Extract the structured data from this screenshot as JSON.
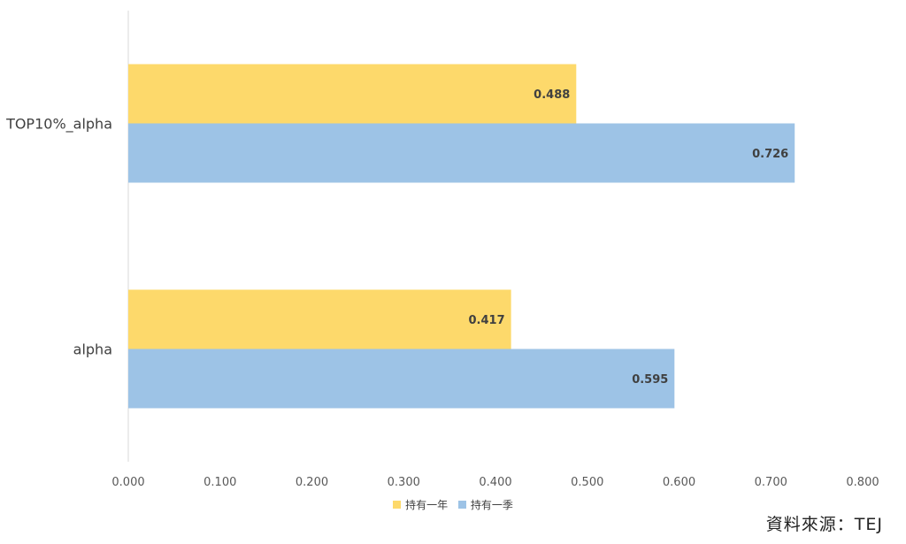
{
  "chart_data": {
    "type": "bar",
    "orientation": "horizontal",
    "categories": [
      "TOP10%_alpha",
      "alpha"
    ],
    "series": [
      {
        "name": "持有一年",
        "color": "#FDD96B",
        "values": [
          0.488,
          0.417
        ],
        "labels": [
          "0.488",
          "0.417"
        ]
      },
      {
        "name": "持有一季",
        "color": "#9DC3E6",
        "values": [
          0.726,
          0.595
        ],
        "labels": [
          "0.726",
          "0.595"
        ]
      }
    ],
    "xlim": [
      0,
      0.8
    ],
    "xticks": [
      "0.000",
      "0.100",
      "0.200",
      "0.300",
      "0.400",
      "0.500",
      "0.600",
      "0.700",
      "0.800"
    ],
    "grid": false,
    "legend_position": "bottom"
  },
  "source_text": "資料來源：TEJ"
}
